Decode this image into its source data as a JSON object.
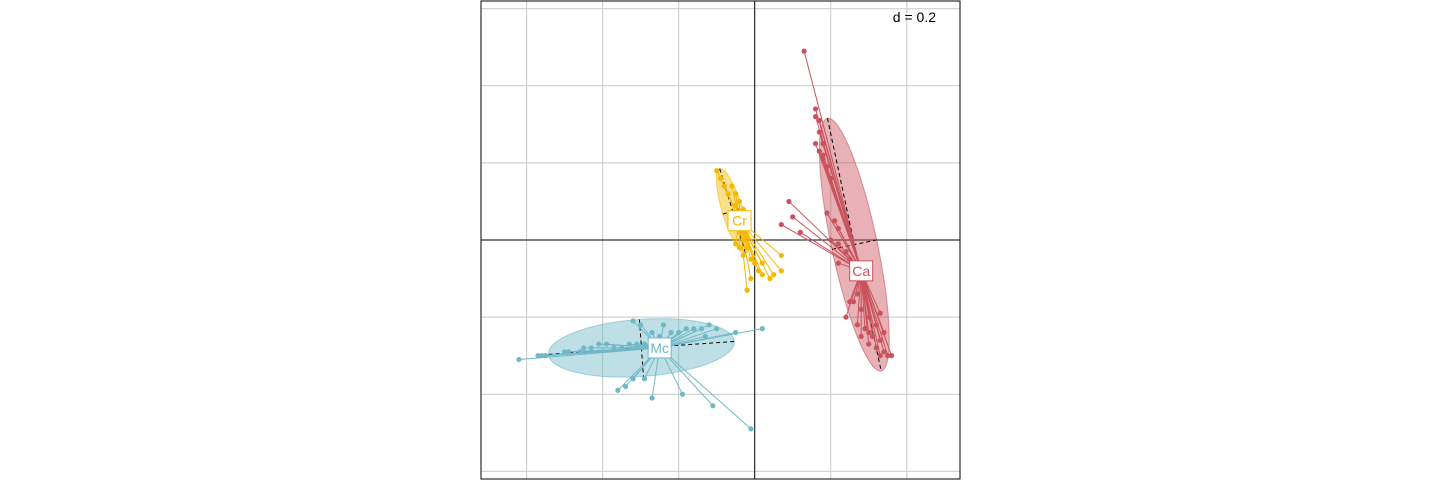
{
  "chart_data": {
    "type": "scatter",
    "title": "",
    "xlabel": "",
    "ylabel": "",
    "xlim": [
      -0.72,
      0.54
    ],
    "ylim": [
      -0.62,
      0.62
    ],
    "grid": true,
    "grid_step": 0.2,
    "axes_through_origin": true,
    "scale_label": "d = 0.2",
    "colors": {
      "Ca": "#c9525c",
      "Cr": "#f5b800",
      "Mc": "#70b8c8",
      "grid": "#c8c8c8",
      "axis": "#000000"
    },
    "groups": [
      {
        "name": "Ca",
        "center": [
          0.28,
          -0.08
        ],
        "ellipse": {
          "cx": 0.262,
          "cy": -0.012,
          "rx": 0.06,
          "ry": 0.335,
          "angle": -12
        },
        "points": [
          [
            0.13,
            0.49
          ],
          [
            0.16,
            0.34
          ],
          [
            0.17,
            0.31
          ],
          [
            0.16,
            0.32
          ],
          [
            0.17,
            0.28
          ],
          [
            0.18,
            0.25
          ],
          [
            0.17,
            0.23
          ],
          [
            0.18,
            0.22
          ],
          [
            0.16,
            0.25
          ],
          [
            0.18,
            0.21
          ],
          [
            0.19,
            0.19
          ],
          [
            0.2,
            0.16
          ],
          [
            0.09,
            0.1
          ],
          [
            0.1,
            0.06
          ],
          [
            0.12,
            0.02
          ],
          [
            0.07,
            0.04
          ],
          [
            0.19,
            0.07
          ],
          [
            0.21,
            0.05
          ],
          [
            0.22,
            0.03
          ],
          [
            0.2,
            0.0
          ],
          [
            0.22,
            -0.01
          ],
          [
            0.24,
            -0.03
          ],
          [
            0.25,
            -0.05
          ],
          [
            0.22,
            -0.06
          ],
          [
            0.26,
            -0.1
          ],
          [
            0.27,
            -0.14
          ],
          [
            0.25,
            -0.16
          ],
          [
            0.28,
            -0.18
          ],
          [
            0.24,
            -0.2
          ],
          [
            0.27,
            -0.22
          ],
          [
            0.29,
            -0.23
          ],
          [
            0.3,
            -0.24
          ],
          [
            0.31,
            -0.25
          ],
          [
            0.28,
            -0.25
          ],
          [
            0.3,
            -0.27
          ],
          [
            0.32,
            -0.28
          ],
          [
            0.33,
            -0.3
          ],
          [
            0.34,
            -0.29
          ],
          [
            0.35,
            -0.3
          ],
          [
            0.33,
            -0.26
          ],
          [
            0.32,
            -0.22
          ],
          [
            0.33,
            -0.19
          ],
          [
            0.27,
            -0.08
          ],
          [
            0.29,
            -0.12
          ],
          [
            0.26,
            -0.16
          ],
          [
            0.3,
            -0.2
          ],
          [
            0.34,
            -0.24
          ],
          [
            0.36,
            -0.3
          ]
        ]
      },
      {
        "name": "Cr",
        "center": [
          -0.04,
          0.05
        ],
        "ellipse": {
          "cx": -0.058,
          "cy": 0.075,
          "rx": 0.027,
          "ry": 0.115,
          "angle": -17
        },
        "points": [
          [
            -0.1,
            0.18
          ],
          [
            -0.09,
            0.16
          ],
          [
            -0.08,
            0.14
          ],
          [
            -0.06,
            0.14
          ],
          [
            -0.07,
            0.12
          ],
          [
            -0.05,
            0.12
          ],
          [
            -0.04,
            0.1
          ],
          [
            -0.05,
            0.09
          ],
          [
            -0.03,
            0.08
          ],
          [
            -0.04,
            0.06
          ],
          [
            -0.02,
            0.05
          ],
          [
            -0.03,
            0.04
          ],
          [
            -0.04,
            0.02
          ],
          [
            -0.02,
            0.01
          ],
          [
            -0.03,
            0.0
          ],
          [
            -0.05,
            -0.01
          ],
          [
            -0.04,
            -0.02
          ],
          [
            -0.02,
            -0.02
          ],
          [
            -0.03,
            -0.04
          ],
          [
            -0.01,
            -0.05
          ],
          [
            0.0,
            -0.06
          ],
          [
            0.02,
            -0.06
          ],
          [
            0.01,
            -0.08
          ],
          [
            0.02,
            -0.09
          ],
          [
            0.07,
            -0.04
          ],
          [
            0.07,
            -0.08
          ],
          [
            0.05,
            -0.09
          ],
          [
            0.04,
            -0.1
          ],
          [
            -0.01,
            -0.1
          ],
          [
            -0.02,
            -0.13
          ]
        ]
      },
      {
        "name": "Mc",
        "center": [
          -0.25,
          -0.28
        ],
        "ellipse": {
          "cx": -0.298,
          "cy": -0.28,
          "rx": 0.245,
          "ry": 0.074,
          "angle": -4
        },
        "points": [
          [
            -0.62,
            -0.31
          ],
          [
            -0.57,
            -0.3
          ],
          [
            -0.56,
            -0.3
          ],
          [
            -0.55,
            -0.3
          ],
          [
            -0.5,
            -0.29
          ],
          [
            -0.49,
            -0.29
          ],
          [
            -0.46,
            -0.29
          ],
          [
            -0.45,
            -0.28
          ],
          [
            -0.43,
            -0.28
          ],
          [
            -0.41,
            -0.27
          ],
          [
            -0.39,
            -0.27
          ],
          [
            -0.37,
            -0.28
          ],
          [
            -0.35,
            -0.28
          ],
          [
            -0.33,
            -0.27
          ],
          [
            -0.31,
            -0.27
          ],
          [
            -0.29,
            -0.27
          ],
          [
            -0.27,
            -0.24
          ],
          [
            -0.25,
            -0.25
          ],
          [
            -0.22,
            -0.24
          ],
          [
            -0.2,
            -0.24
          ],
          [
            -0.18,
            -0.23
          ],
          [
            -0.16,
            -0.23
          ],
          [
            -0.14,
            -0.23
          ],
          [
            -0.13,
            -0.25
          ],
          [
            -0.12,
            -0.22
          ],
          [
            -0.1,
            -0.23
          ],
          [
            -0.05,
            -0.24
          ],
          [
            0.02,
            -0.23
          ],
          [
            -0.32,
            -0.21
          ],
          [
            -0.3,
            -0.22
          ],
          [
            -0.24,
            -0.22
          ],
          [
            -0.29,
            -0.36
          ],
          [
            -0.32,
            -0.36
          ],
          [
            -0.34,
            -0.38
          ],
          [
            -0.36,
            -0.39
          ],
          [
            -0.27,
            -0.41
          ],
          [
            -0.19,
            -0.4
          ],
          [
            -0.11,
            -0.43
          ],
          [
            -0.01,
            -0.49
          ]
        ]
      }
    ]
  }
}
